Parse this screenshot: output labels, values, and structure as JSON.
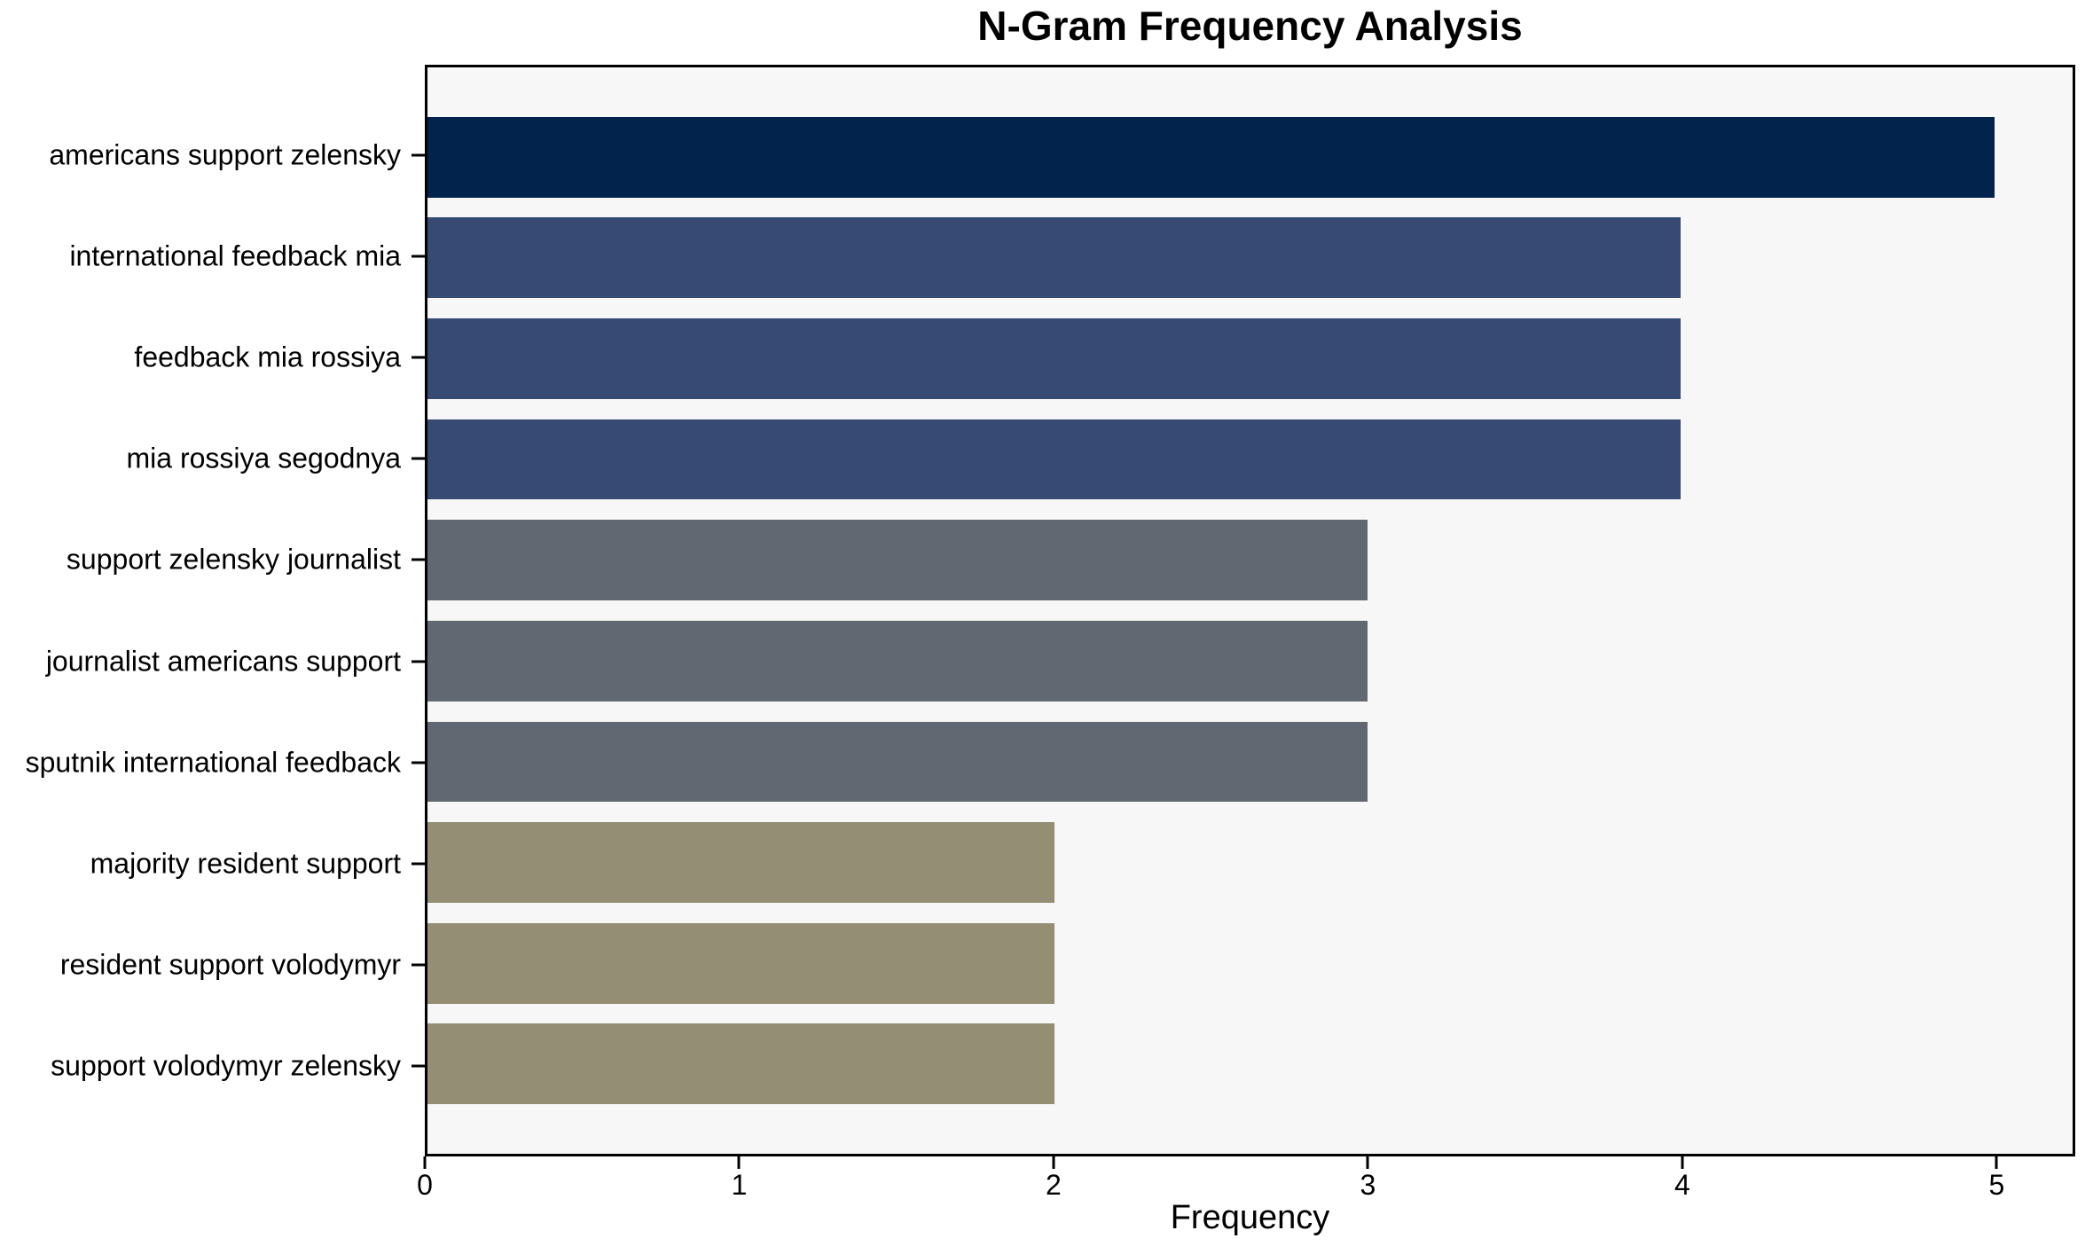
{
  "chart_data": {
    "type": "bar",
    "orientation": "horizontal",
    "title": "N-Gram Frequency Analysis",
    "xlabel": "Frequency",
    "ylabel": "",
    "categories": [
      "americans support zelensky",
      "international feedback mia",
      "feedback mia rossiya",
      "mia rossiya segodnya",
      "support zelensky journalist",
      "journalist americans support",
      "sputnik international feedback",
      "majority resident support",
      "resident support volodymyr",
      "support volodymyr zelensky"
    ],
    "values": [
      5,
      4,
      4,
      4,
      3,
      3,
      3,
      2,
      2,
      2
    ],
    "bar_colors": [
      "#02234c",
      "#364a73",
      "#364a73",
      "#364a73",
      "#626872",
      "#626872",
      "#626872",
      "#948e74",
      "#948e74",
      "#948e74"
    ],
    "x_ticks": [
      0,
      1,
      2,
      3,
      4,
      5
    ],
    "xlim": [
      0,
      5.25
    ],
    "grid": false,
    "legend": "none",
    "colors": {
      "plot_background": "#f7f7f7",
      "page_background": "#ffffff",
      "axis_frame": "#000000",
      "text": "#000000"
    }
  }
}
